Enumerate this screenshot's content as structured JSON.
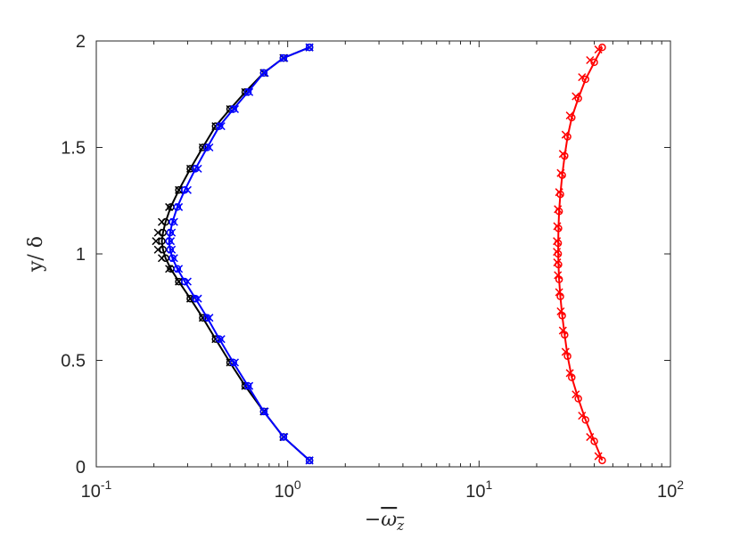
{
  "chart_data": {
    "type": "line",
    "title": "",
    "xlabel": "−ω̄z",
    "ylabel": "y/ δ",
    "xscale": "log",
    "xlim": [
      0.1,
      100
    ],
    "ylim": [
      0,
      2
    ],
    "grid": false,
    "legend": "none",
    "x_ticks": [
      {
        "value": 0.1,
        "base": "10",
        "exp": "-1"
      },
      {
        "value": 1,
        "base": "10",
        "exp": "0"
      },
      {
        "value": 10,
        "base": "10",
        "exp": "1"
      },
      {
        "value": 100,
        "base": "10",
        "exp": "2"
      }
    ],
    "y_ticks": [
      {
        "value": 0,
        "label": "0"
      },
      {
        "value": 0.5,
        "label": "0.5"
      },
      {
        "value": 1,
        "label": "1"
      },
      {
        "value": 1.5,
        "label": "1.5"
      },
      {
        "value": 2,
        "label": "2"
      }
    ],
    "series": [
      {
        "color": "#000000",
        "marker": "x",
        "line": false,
        "x": [
          1.3,
          0.95,
          0.75,
          0.6,
          0.5,
          0.42,
          0.36,
          0.31,
          0.27,
          0.24,
          0.22,
          0.21,
          0.205,
          0.21,
          0.22,
          0.24,
          0.27,
          0.31,
          0.36,
          0.42,
          0.5,
          0.6,
          0.75,
          0.95,
          1.3
        ],
        "y": [
          0.03,
          0.14,
          0.26,
          0.38,
          0.49,
          0.6,
          0.7,
          0.79,
          0.87,
          0.93,
          0.98,
          1.02,
          1.06,
          1.1,
          1.15,
          1.22,
          1.3,
          1.4,
          1.5,
          1.6,
          1.68,
          1.76,
          1.85,
          1.92,
          1.97
        ]
      },
      {
        "color": "#000000",
        "marker": "o",
        "line": true,
        "x": [
          1.3,
          0.95,
          0.75,
          0.6,
          0.5,
          0.42,
          0.36,
          0.31,
          0.27,
          0.245,
          0.23,
          0.223,
          0.22,
          0.223,
          0.23,
          0.245,
          0.27,
          0.31,
          0.36,
          0.42,
          0.5,
          0.6,
          0.75,
          0.95,
          1.3
        ],
        "y": [
          0.03,
          0.14,
          0.26,
          0.38,
          0.49,
          0.6,
          0.7,
          0.79,
          0.87,
          0.93,
          0.98,
          1.02,
          1.06,
          1.1,
          1.15,
          1.22,
          1.3,
          1.4,
          1.5,
          1.6,
          1.68,
          1.76,
          1.85,
          1.92,
          1.97
        ]
      },
      {
        "color": "#0000ff",
        "marker": "o",
        "line": true,
        "x": [
          1.3,
          0.95,
          0.75,
          0.62,
          0.52,
          0.44,
          0.38,
          0.33,
          0.29,
          0.265,
          0.25,
          0.243,
          0.24,
          0.243,
          0.25,
          0.265,
          0.29,
          0.33,
          0.38,
          0.44,
          0.52,
          0.62,
          0.75,
          0.95,
          1.3
        ],
        "y": [
          0.03,
          0.14,
          0.26,
          0.38,
          0.49,
          0.6,
          0.7,
          0.79,
          0.87,
          0.93,
          0.98,
          1.02,
          1.06,
          1.1,
          1.15,
          1.22,
          1.3,
          1.4,
          1.5,
          1.6,
          1.68,
          1.76,
          1.85,
          1.92,
          1.97
        ]
      },
      {
        "color": "#0000ff",
        "marker": "x",
        "line": false,
        "x": [
          1.3,
          0.96,
          0.76,
          0.63,
          0.53,
          0.45,
          0.39,
          0.34,
          0.3,
          0.27,
          0.255,
          0.248,
          0.245,
          0.248,
          0.255,
          0.27,
          0.3,
          0.34,
          0.39,
          0.45,
          0.53,
          0.63,
          0.76,
          0.96,
          1.3
        ],
        "y": [
          0.03,
          0.14,
          0.26,
          0.38,
          0.49,
          0.6,
          0.7,
          0.79,
          0.87,
          0.93,
          0.98,
          1.02,
          1.06,
          1.1,
          1.15,
          1.22,
          1.3,
          1.4,
          1.5,
          1.6,
          1.68,
          1.76,
          1.85,
          1.92,
          1.97
        ]
      },
      {
        "color": "#ff0000",
        "marker": "o",
        "line": true,
        "x": [
          44,
          40,
          36,
          33,
          30.5,
          29,
          28,
          27.2,
          26.6,
          26.2,
          26,
          25.9,
          25.9,
          26,
          26.2,
          26.6,
          27.2,
          28,
          29,
          30.5,
          33,
          36,
          40,
          44
        ],
        "y": [
          0.03,
          0.12,
          0.22,
          0.32,
          0.42,
          0.52,
          0.62,
          0.71,
          0.8,
          0.88,
          0.95,
          1.0,
          1.05,
          1.12,
          1.2,
          1.28,
          1.37,
          1.46,
          1.55,
          1.64,
          1.73,
          1.82,
          1.9,
          1.97
        ]
      },
      {
        "color": "#ff0000",
        "marker": "x",
        "line": false,
        "x": [
          42,
          38,
          34.5,
          32,
          29.8,
          28.3,
          27.4,
          26.7,
          26.2,
          25.8,
          25.6,
          25.5,
          25.5,
          25.6,
          25.8,
          26.2,
          26.7,
          27.4,
          28.3,
          29.8,
          32,
          34.5,
          38,
          42
        ],
        "y": [
          0.05,
          0.14,
          0.24,
          0.34,
          0.44,
          0.54,
          0.64,
          0.73,
          0.82,
          0.9,
          0.96,
          1.01,
          1.06,
          1.13,
          1.21,
          1.29,
          1.38,
          1.47,
          1.56,
          1.65,
          1.74,
          1.83,
          1.91,
          1.96
        ]
      }
    ]
  }
}
